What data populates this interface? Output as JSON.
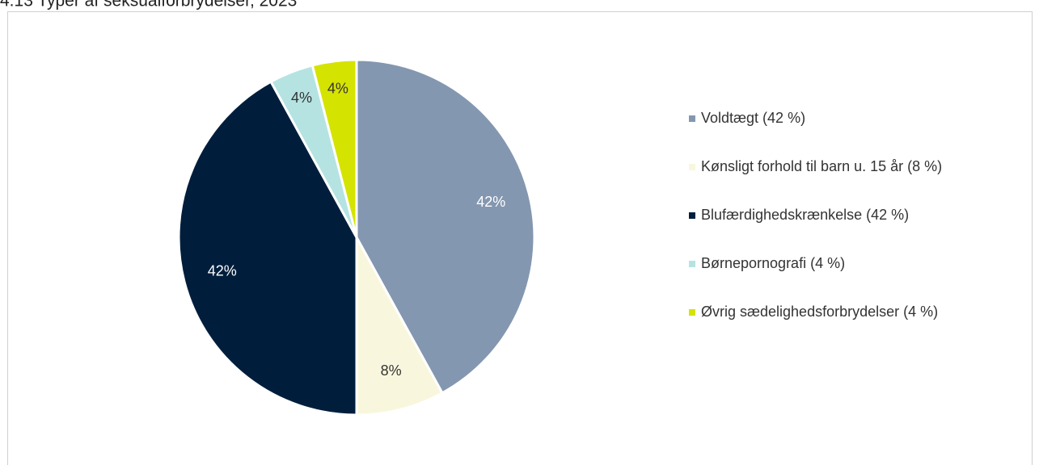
{
  "chart_data": {
    "type": "pie",
    "title": "4.13 Typer af seksualforbrydelser, 2023",
    "categories": [
      "Voldtægt (42 %)",
      "Kønsligt forhold til barn u. 15 år (8 %)",
      "Blufærdighedskrænkelse (42 %)",
      "Børnepornografi (4 %)",
      "Øvrig sædelighedsforbrydelser (4 %)"
    ],
    "values": [
      42,
      8,
      42,
      4,
      4
    ],
    "value_labels": [
      "42%",
      "8%",
      "42%",
      "4%",
      "4%"
    ],
    "colors": [
      "#8497b0",
      "#f8f7dd",
      "#001e3c",
      "#b5e3e2",
      "#d5e300"
    ],
    "label_colors": [
      "#ffffff",
      "#333333",
      "#ffffff",
      "#333333",
      "#333333"
    ],
    "legend": "right"
  }
}
